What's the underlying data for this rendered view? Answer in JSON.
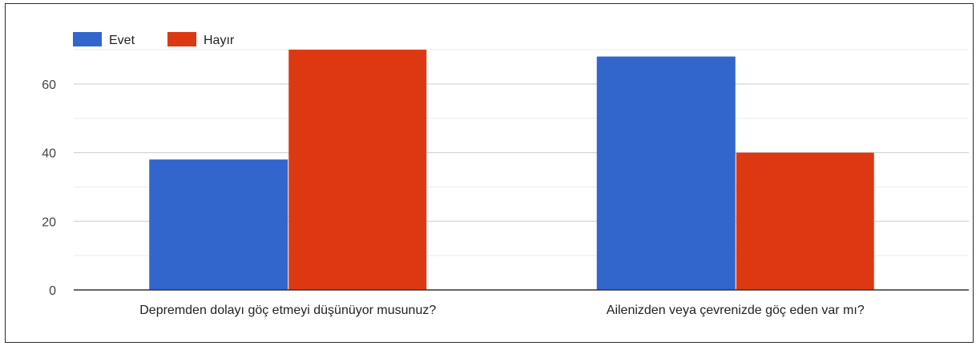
{
  "chart_data": {
    "type": "bar",
    "title": "",
    "xlabel": "",
    "ylabel": "",
    "categories": [
      "Depremden dolayı göç etmeyi düşünüyor musunuz?",
      "Ailenizden veya çevrenizde göç eden var mı?"
    ],
    "series": [
      {
        "name": "Evet",
        "color": "#3366cc",
        "values": [
          38,
          68
        ]
      },
      {
        "name": "Hayır",
        "color": "#dc3912",
        "values": [
          70,
          40
        ]
      }
    ],
    "ylim": [
      0,
      70
    ],
    "yticks": [
      0,
      20,
      40,
      60
    ],
    "grid": true,
    "legend_position": "top-left"
  }
}
